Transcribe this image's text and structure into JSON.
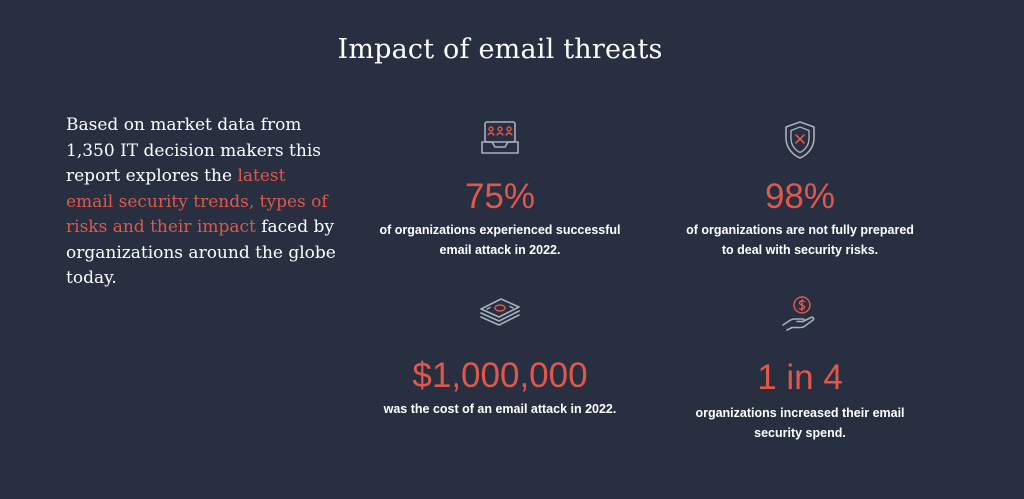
{
  "title": "Impact of email threats",
  "intro": {
    "text_before": "Based on market data from 1,350 IT decision makers this report explores the ",
    "highlight": "latest email security trends, types of risks and their impact",
    "text_after": " faced by organizations around the globe today."
  },
  "colors": {
    "background": "#272f40",
    "accent": "#e0584b",
    "text": "#ffffff",
    "icon_stroke": "#a9afbd"
  },
  "stats": [
    {
      "icon": "inbox-people-icon",
      "value": "75%",
      "description_line1": "of organizations experienced successful",
      "description_line2": "email attack in 2022."
    },
    {
      "icon": "shield-x-icon",
      "value": "98%",
      "description_line1": "of organizations are not fully prepared",
      "description_line2": "to deal with security risks."
    },
    {
      "icon": "money-stack-icon",
      "value": "$1,000,000",
      "description_line1": "was the cost of an email attack in 2022.",
      "description_line2": ""
    },
    {
      "icon": "hand-dollar-icon",
      "value": "1 in 4",
      "description_line1": "organizations increased their email",
      "description_line2": "security spend."
    }
  ]
}
